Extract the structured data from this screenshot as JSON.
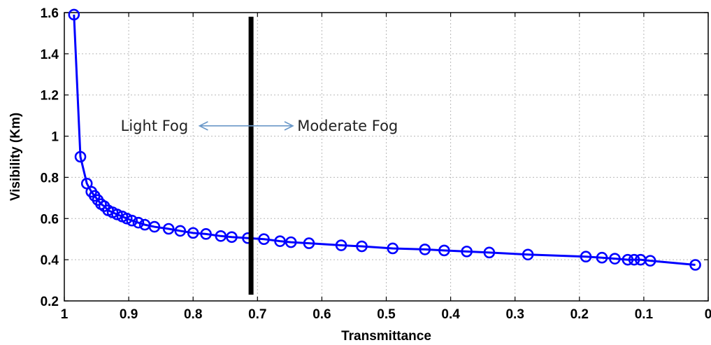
{
  "chart_data": {
    "type": "line",
    "title": "",
    "xlabel": "Transmittance",
    "ylabel": "Visibility (Km)",
    "xlim": [
      1,
      0
    ],
    "ylim": [
      0.2,
      1.6
    ],
    "x_reversed": true,
    "grid": true,
    "x_ticks": [
      "1",
      "0.9",
      "0.8",
      "0.7",
      "0.6",
      "0.5",
      "0.4",
      "0.3",
      "0.2",
      "0.1",
      "0"
    ],
    "y_ticks": [
      "0.2",
      "0.4",
      "0.6",
      "0.8",
      "1",
      "1.2",
      "1.4",
      "1.6"
    ],
    "series": [
      {
        "color": "#0000ff",
        "marker": "circle",
        "x": [
          0.985,
          0.975,
          0.965,
          0.958,
          0.953,
          0.948,
          0.943,
          0.938,
          0.932,
          0.925,
          0.918,
          0.91,
          0.903,
          0.895,
          0.885,
          0.875,
          0.86,
          0.838,
          0.82,
          0.8,
          0.78,
          0.757,
          0.74,
          0.715,
          0.69,
          0.665,
          0.648,
          0.62,
          0.57,
          0.538,
          0.49,
          0.44,
          0.41,
          0.375,
          0.34,
          0.28,
          0.19,
          0.165,
          0.145,
          0.125,
          0.115,
          0.105,
          0.09,
          0.02
        ],
        "y": [
          1.59,
          0.9,
          0.77,
          0.73,
          0.71,
          0.69,
          0.67,
          0.66,
          0.64,
          0.63,
          0.62,
          0.61,
          0.6,
          0.59,
          0.58,
          0.57,
          0.56,
          0.55,
          0.54,
          0.53,
          0.525,
          0.515,
          0.51,
          0.505,
          0.5,
          0.49,
          0.485,
          0.48,
          0.47,
          0.465,
          0.455,
          0.45,
          0.445,
          0.44,
          0.435,
          0.425,
          0.415,
          0.41,
          0.405,
          0.4,
          0.4,
          0.4,
          0.395,
          0.375
        ]
      }
    ],
    "vertical_line": {
      "x": 0.71,
      "y_range": [
        0.23,
        1.58
      ],
      "color": "#000000"
    },
    "arrow": {
      "from_x": 0.79,
      "to_x": 0.645,
      "y": 1.05,
      "color": "#6a98c8"
    },
    "annotations": [
      {
        "text": "Light Fog",
        "x": 0.86,
        "y": 1.05
      },
      {
        "text": "Moderate Fog",
        "x": 0.56,
        "y": 1.05
      }
    ]
  }
}
